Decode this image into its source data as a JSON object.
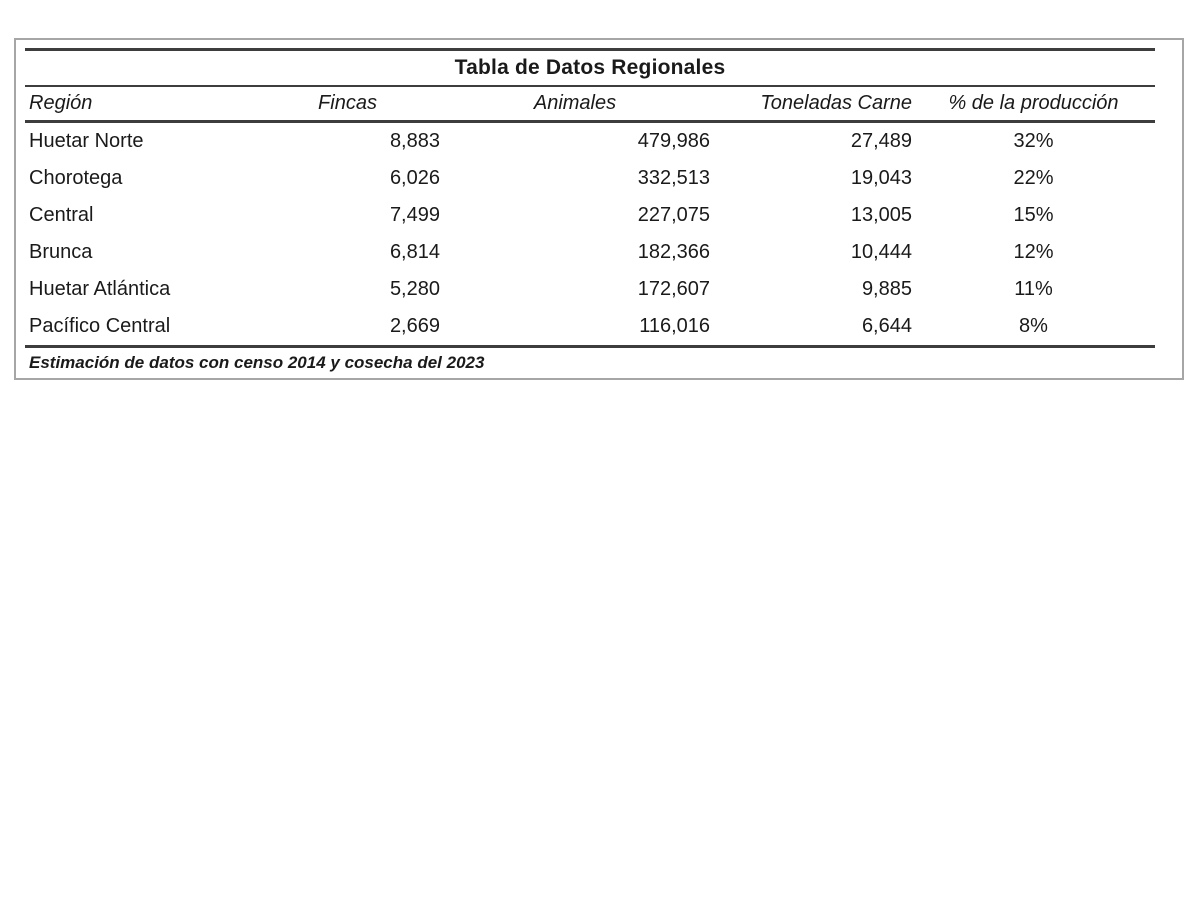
{
  "table": {
    "title": "Tabla de Datos Regionales",
    "columns": [
      {
        "label": "Región"
      },
      {
        "label": "Fincas"
      },
      {
        "label": "Animales"
      },
      {
        "label": "Toneladas Carne"
      },
      {
        "label": "% de la producción"
      }
    ],
    "rows": [
      {
        "region": "Huetar Norte",
        "fincas": "8,883",
        "animales": "479,986",
        "toneladas": "27,489",
        "pct": "32%"
      },
      {
        "region": "Chorotega",
        "fincas": "6,026",
        "animales": "332,513",
        "toneladas": "19,043",
        "pct": "22%"
      },
      {
        "region": "Central",
        "fincas": "7,499",
        "animales": "227,075",
        "toneladas": "13,005",
        "pct": "15%"
      },
      {
        "region": "Brunca",
        "fincas": "6,814",
        "animales": "182,366",
        "toneladas": "10,444",
        "pct": "12%"
      },
      {
        "region": "Huetar Atlántica",
        "fincas": "5,280",
        "animales": "172,607",
        "toneladas": "9,885",
        "pct": "11%"
      },
      {
        "region": "Pacífico Central",
        "fincas": "2,669",
        "animales": "116,016",
        "toneladas": "6,644",
        "pct": "8%"
      }
    ],
    "footnote": "Estimación de datos con censo 2014 y cosecha del 2023"
  },
  "chart_data": {
    "type": "table",
    "title": "Tabla de Datos Regionales",
    "columns": [
      "Región",
      "Fincas",
      "Animales",
      "Toneladas Carne",
      "% de la producción"
    ],
    "categories": [
      "Huetar Norte",
      "Chorotega",
      "Central",
      "Brunca",
      "Huetar Atlántica",
      "Pacífico Central"
    ],
    "series": [
      {
        "name": "Fincas",
        "values": [
          8883,
          6026,
          7499,
          6814,
          5280,
          2669
        ]
      },
      {
        "name": "Animales",
        "values": [
          479986,
          332513,
          227075,
          182366,
          172607,
          116016
        ]
      },
      {
        "name": "Toneladas Carne",
        "values": [
          27489,
          19043,
          13005,
          10444,
          9885,
          6644
        ]
      },
      {
        "name": "% de la producción",
        "values": [
          32,
          22,
          15,
          12,
          11,
          8
        ]
      }
    ],
    "annotations": [
      "Estimación de datos con censo 2014 y cosecha del 2023"
    ]
  },
  "colors": {
    "rule": "#3d3d3d",
    "frame_border": "#a6a6a6",
    "text": "#1a1a1a"
  }
}
